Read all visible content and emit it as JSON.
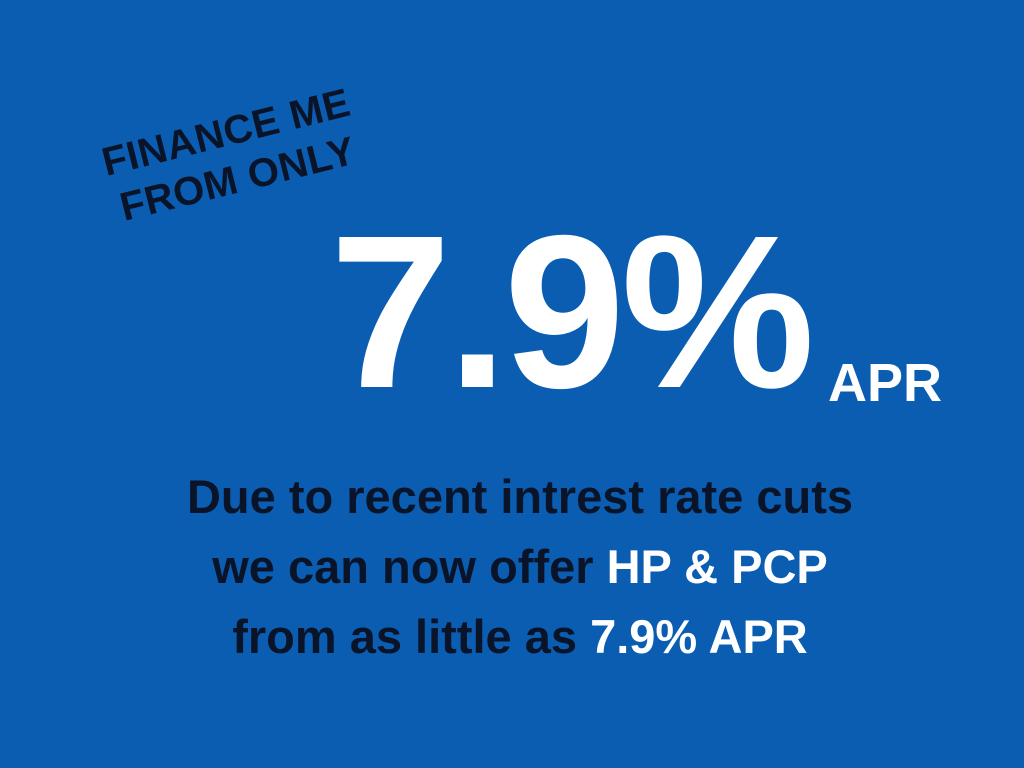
{
  "headline": {
    "line1": "FINANCE ME",
    "line2": "FROM ONLY"
  },
  "rate": {
    "value": "7.9%",
    "unit": "APR"
  },
  "message": {
    "line1": "Due to recent intrest rate cuts",
    "line2_text": "we can now offer ",
    "line2_highlight": "HP & PCP",
    "line3_text": "from as little as ",
    "line3_highlight": "7.9% APR"
  },
  "colors": {
    "background": "#0b5db2",
    "dark_text": "#0a1428",
    "highlight": "#ffffff"
  }
}
